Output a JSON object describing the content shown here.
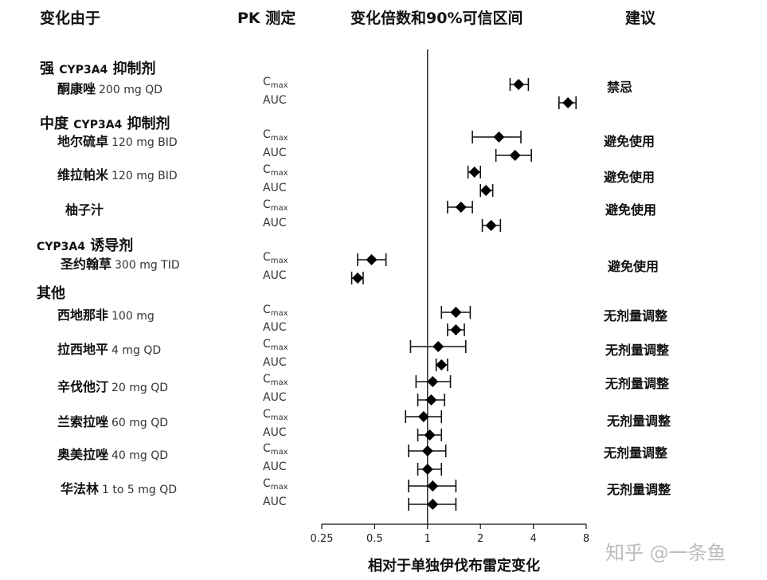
{
  "headers": {
    "change_by": "变化由于",
    "pk": "PK 测定",
    "fold": "变化倍数和90%可信区间",
    "advice": "建议"
  },
  "groups": [
    {
      "prefix": "强",
      "en": "CYP3A4",
      "suffix": "抑制剂"
    },
    {
      "prefix": "中度",
      "en": "CYP3A4",
      "suffix": "抑制剂"
    },
    {
      "prefix": "",
      "en": "CYP3A4",
      "suffix": "诱导剂"
    },
    {
      "prefix": "其他",
      "en": "",
      "suffix": ""
    }
  ],
  "drugs": [
    {
      "name": "酮康唑",
      "dose": "200 mg QD",
      "advice": "禁忌"
    },
    {
      "name": "地尔硫卓",
      "dose": "120 mg BID",
      "advice": "避免使用"
    },
    {
      "name": "维拉帕米",
      "dose": "120 mg BID",
      "advice": "避免使用"
    },
    {
      "name": "柚子汁",
      "dose": "",
      "advice": "避免使用"
    },
    {
      "name": "圣约翰草",
      "dose": "300 mg TID",
      "advice": "避免使用"
    },
    {
      "name": "西地那非",
      "dose": "100 mg",
      "advice": "无剂量调整"
    },
    {
      "name": "拉西地平",
      "dose": "4 mg QD",
      "advice": "无剂量调整"
    },
    {
      "name": "辛伐他汀",
      "dose": "20 mg QD",
      "advice": "无剂量调整"
    },
    {
      "name": "兰索拉唑",
      "dose": "60 mg QD",
      "advice": "无剂量调整"
    },
    {
      "name": "奥美拉唑",
      "dose": "40 mg QD",
      "advice": "无剂量调整"
    },
    {
      "name": "华法林",
      "dose": "1 to 5 mg QD",
      "advice": "无剂量调整"
    }
  ],
  "pk_labels": {
    "cmax_c": "C",
    "cmax_sub": "max",
    "auc": "AUC"
  },
  "watermark": "知乎 @一条鱼",
  "chart_data": {
    "type": "forest",
    "xlabel": "相对于单独伊伐布雷定变化",
    "xscale": "log2",
    "xlim": [
      0.25,
      8
    ],
    "ticks": [
      0.25,
      0.5,
      1,
      2,
      4,
      8
    ],
    "tick_labels": [
      "0.25",
      "0.5",
      "1",
      "2",
      "4",
      "8"
    ],
    "reference_line": 1,
    "points": [
      {
        "drug": "酮康唑",
        "measure": "Cmax",
        "est": 3.3,
        "lo": 2.95,
        "hi": 3.75
      },
      {
        "drug": "酮康唑",
        "measure": "AUC",
        "est": 6.3,
        "lo": 5.6,
        "hi": 7.0
      },
      {
        "drug": "地尔硫卓",
        "measure": "Cmax",
        "est": 2.55,
        "lo": 1.8,
        "hi": 3.4
      },
      {
        "drug": "地尔硫卓",
        "measure": "AUC",
        "est": 3.15,
        "lo": 2.45,
        "hi": 3.9
      },
      {
        "drug": "维拉帕米",
        "measure": "Cmax",
        "est": 1.85,
        "lo": 1.7,
        "hi": 2.0
      },
      {
        "drug": "维拉帕米",
        "measure": "AUC",
        "est": 2.15,
        "lo": 2.0,
        "hi": 2.35
      },
      {
        "drug": "柚子汁",
        "measure": "Cmax",
        "est": 1.55,
        "lo": 1.3,
        "hi": 1.8
      },
      {
        "drug": "柚子汁",
        "measure": "AUC",
        "est": 2.3,
        "lo": 2.05,
        "hi": 2.6
      },
      {
        "drug": "圣约翰草",
        "measure": "Cmax",
        "est": 0.48,
        "lo": 0.4,
        "hi": 0.58
      },
      {
        "drug": "圣约翰草",
        "measure": "AUC",
        "est": 0.4,
        "lo": 0.37,
        "hi": 0.43
      },
      {
        "drug": "西地那非",
        "measure": "Cmax",
        "est": 1.45,
        "lo": 1.2,
        "hi": 1.75
      },
      {
        "drug": "西地那非",
        "measure": "AUC",
        "est": 1.45,
        "lo": 1.3,
        "hi": 1.62
      },
      {
        "drug": "拉西地平",
        "measure": "Cmax",
        "est": 1.15,
        "lo": 0.8,
        "hi": 1.65
      },
      {
        "drug": "拉西地平",
        "measure": "AUC",
        "est": 1.2,
        "lo": 1.12,
        "hi": 1.3
      },
      {
        "drug": "辛伐他汀",
        "measure": "Cmax",
        "est": 1.07,
        "lo": 0.86,
        "hi": 1.35
      },
      {
        "drug": "辛伐他汀",
        "measure": "AUC",
        "est": 1.05,
        "lo": 0.88,
        "hi": 1.25
      },
      {
        "drug": "兰索拉唑",
        "measure": "Cmax",
        "est": 0.95,
        "lo": 0.75,
        "hi": 1.2
      },
      {
        "drug": "兰索拉唑",
        "measure": "AUC",
        "est": 1.03,
        "lo": 0.88,
        "hi": 1.2
      },
      {
        "drug": "奥美拉唑",
        "measure": "Cmax",
        "est": 1.0,
        "lo": 0.78,
        "hi": 1.27
      },
      {
        "drug": "奥美拉唑",
        "measure": "AUC",
        "est": 1.0,
        "lo": 0.88,
        "hi": 1.2
      },
      {
        "drug": "华法林",
        "measure": "Cmax",
        "est": 1.07,
        "lo": 0.78,
        "hi": 1.45
      },
      {
        "drug": "华法林",
        "measure": "AUC",
        "est": 1.07,
        "lo": 0.78,
        "hi": 1.45
      }
    ]
  }
}
